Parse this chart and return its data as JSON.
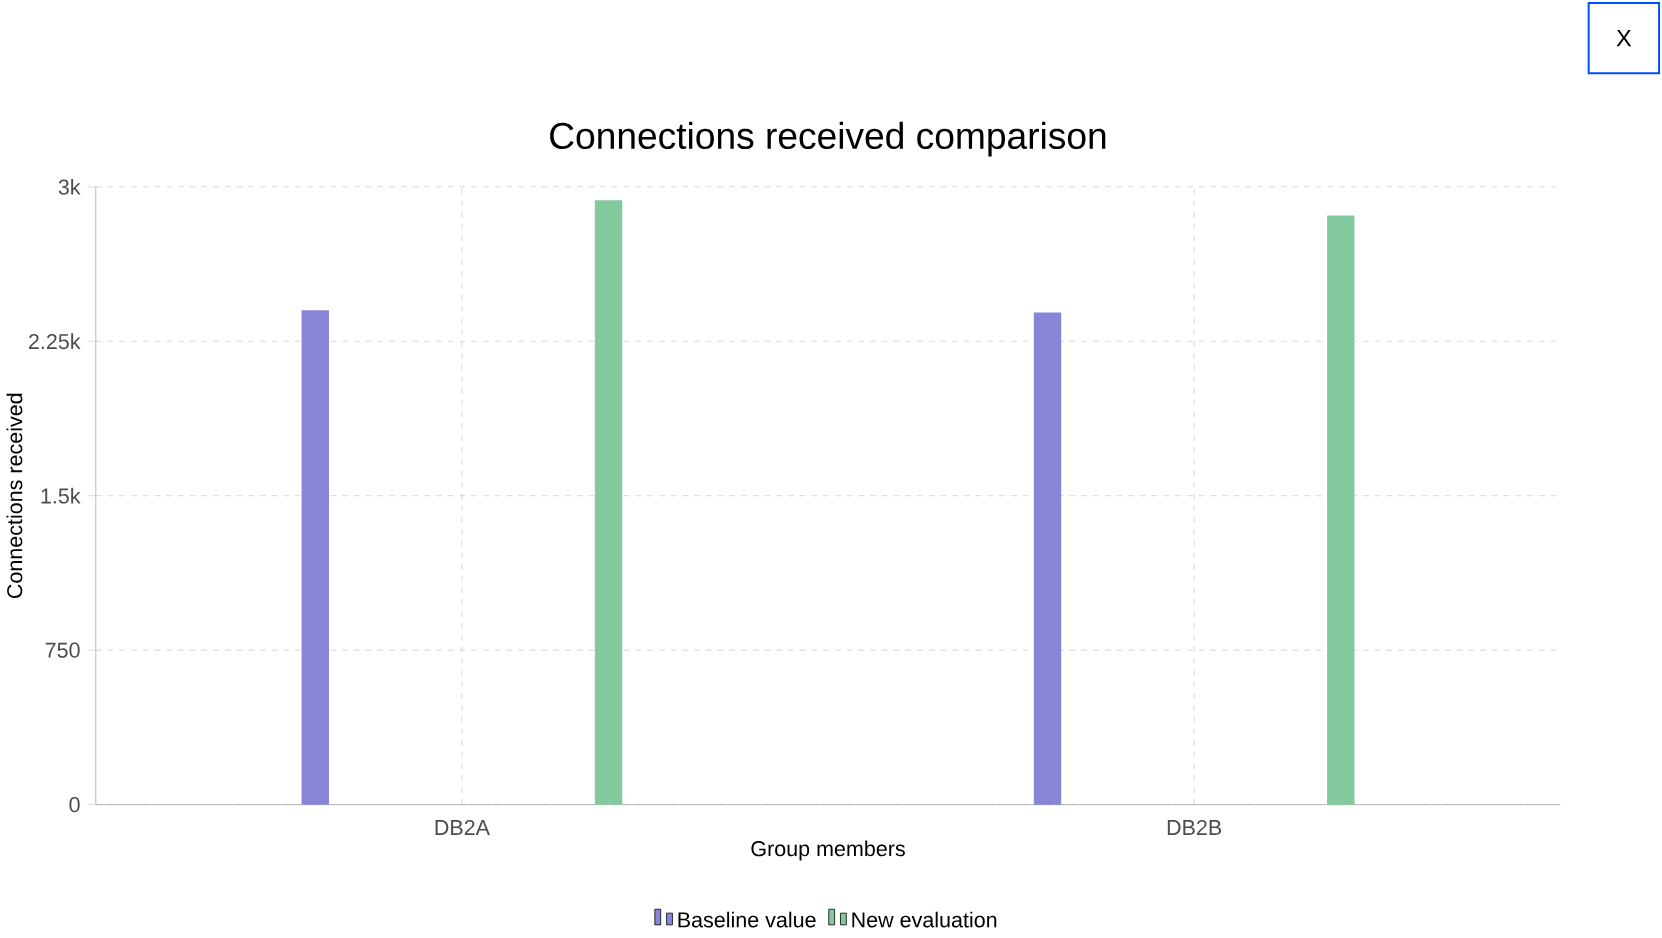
{
  "chart_data": {
    "type": "bar",
    "title": "Connections received comparison",
    "xlabel": "Group members",
    "ylabel": "Connections received",
    "categories": [
      "DB2A",
      "DB2B"
    ],
    "series": [
      {
        "name": "Baseline value",
        "color": "#8884d8",
        "values": [
          2400,
          2390
        ]
      },
      {
        "name": "New evaluation",
        "color": "#82ca9d",
        "values": [
          2935,
          2860
        ]
      }
    ],
    "ylim": [
      0,
      3000
    ],
    "yticks": [
      {
        "value": 0,
        "label": "0"
      },
      {
        "value": 750,
        "label": "750"
      },
      {
        "value": 1500,
        "label": "1.5k"
      },
      {
        "value": 2250,
        "label": "2.25k"
      },
      {
        "value": 3000,
        "label": "3k"
      }
    ],
    "grid": true,
    "legend": "bottom",
    "annotations": [
      "X"
    ]
  }
}
